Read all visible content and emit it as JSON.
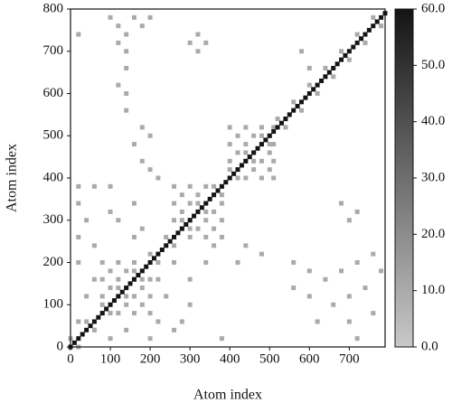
{
  "chart_data": {
    "type": "heatmap",
    "xlabel": "Atom index",
    "ylabel": "Atom index",
    "xlim": [
      0,
      790
    ],
    "ylim": [
      0,
      800
    ],
    "xticks": [
      0,
      100,
      200,
      300,
      400,
      500,
      600,
      700
    ],
    "yticks": [
      0,
      100,
      200,
      300,
      400,
      500,
      600,
      700,
      800
    ],
    "clim": [
      0,
      60
    ],
    "cticks": [
      {
        "value": 0,
        "label": "0.0"
      },
      {
        "value": 10,
        "label": "10.0"
      },
      {
        "value": 20,
        "label": "20.0"
      },
      {
        "value": 30,
        "label": "30.0"
      },
      {
        "value": 40,
        "label": "40.0"
      },
      {
        "value": 50,
        "label": "50.0"
      },
      {
        "value": 60,
        "label": "60.0"
      }
    ],
    "cells": [
      [
        80,
        80,
        10
      ],
      [
        80,
        120,
        10
      ],
      [
        80,
        160,
        10
      ],
      [
        80,
        200,
        10
      ],
      [
        100,
        100,
        10
      ],
      [
        100,
        140,
        10
      ],
      [
        100,
        180,
        10
      ],
      [
        120,
        80,
        10
      ],
      [
        120,
        120,
        10
      ],
      [
        120,
        160,
        10
      ],
      [
        120,
        200,
        10
      ],
      [
        140,
        100,
        10
      ],
      [
        140,
        140,
        10
      ],
      [
        140,
        180,
        10
      ],
      [
        160,
        80,
        10
      ],
      [
        160,
        120,
        10
      ],
      [
        160,
        160,
        10
      ],
      [
        160,
        200,
        10
      ],
      [
        180,
        100,
        10
      ],
      [
        180,
        140,
        10
      ],
      [
        180,
        180,
        10
      ],
      [
        200,
        80,
        10
      ],
      [
        200,
        120,
        10
      ],
      [
        200,
        160,
        10
      ],
      [
        200,
        200,
        10
      ],
      [
        260,
        260,
        10
      ],
      [
        260,
        300,
        10
      ],
      [
        260,
        340,
        10
      ],
      [
        260,
        380,
        10
      ],
      [
        280,
        280,
        10
      ],
      [
        280,
        320,
        10
      ],
      [
        280,
        360,
        10
      ],
      [
        300,
        260,
        10
      ],
      [
        300,
        300,
        10
      ],
      [
        300,
        340,
        10
      ],
      [
        300,
        380,
        10
      ],
      [
        320,
        280,
        10
      ],
      [
        320,
        320,
        10
      ],
      [
        320,
        360,
        10
      ],
      [
        340,
        260,
        10
      ],
      [
        340,
        300,
        10
      ],
      [
        340,
        340,
        10
      ],
      [
        340,
        380,
        10
      ],
      [
        360,
        280,
        10
      ],
      [
        360,
        320,
        10
      ],
      [
        360,
        360,
        10
      ],
      [
        380,
        260,
        10
      ],
      [
        380,
        300,
        10
      ],
      [
        380,
        340,
        10
      ],
      [
        380,
        380,
        10
      ],
      [
        400,
        400,
        10
      ],
      [
        400,
        440,
        10
      ],
      [
        400,
        480,
        10
      ],
      [
        400,
        520,
        10
      ],
      [
        420,
        420,
        10
      ],
      [
        420,
        460,
        10
      ],
      [
        420,
        500,
        10
      ],
      [
        440,
        400,
        10
      ],
      [
        440,
        440,
        10
      ],
      [
        440,
        480,
        10
      ],
      [
        440,
        520,
        10
      ],
      [
        460,
        420,
        10
      ],
      [
        460,
        460,
        10
      ],
      [
        460,
        500,
        10
      ],
      [
        480,
        400,
        10
      ],
      [
        480,
        440,
        10
      ],
      [
        480,
        480,
        10
      ],
      [
        480,
        520,
        10
      ],
      [
        500,
        420,
        10
      ],
      [
        500,
        460,
        10
      ],
      [
        500,
        500,
        10
      ],
      [
        510,
        400,
        10
      ],
      [
        510,
        440,
        10
      ],
      [
        510,
        480,
        10
      ],
      [
        510,
        520,
        10
      ],
      [
        0,
        20,
        10
      ],
      [
        40,
        60,
        10
      ],
      [
        80,
        100,
        10
      ],
      [
        120,
        140,
        10
      ],
      [
        160,
        180,
        10
      ],
      [
        200,
        220,
        10
      ],
      [
        240,
        260,
        10
      ],
      [
        280,
        300,
        10
      ],
      [
        320,
        340,
        10
      ],
      [
        360,
        380,
        10
      ],
      [
        400,
        420,
        10
      ],
      [
        440,
        460,
        10
      ],
      [
        480,
        500,
        10
      ],
      [
        520,
        540,
        10
      ],
      [
        560,
        580,
        10
      ],
      [
        600,
        620,
        10
      ],
      [
        640,
        660,
        10
      ],
      [
        680,
        700,
        10
      ],
      [
        720,
        740,
        10
      ],
      [
        760,
        780,
        10
      ],
      [
        20,
        0,
        10
      ],
      [
        60,
        40,
        10
      ],
      [
        100,
        80,
        10
      ],
      [
        140,
        120,
        10
      ],
      [
        180,
        160,
        10
      ],
      [
        220,
        200,
        10
      ],
      [
        260,
        240,
        10
      ],
      [
        300,
        280,
        10
      ],
      [
        340,
        320,
        10
      ],
      [
        380,
        360,
        10
      ],
      [
        420,
        400,
        10
      ],
      [
        460,
        440,
        10
      ],
      [
        500,
        480,
        10
      ],
      [
        540,
        520,
        10
      ],
      [
        580,
        560,
        10
      ],
      [
        620,
        600,
        10
      ],
      [
        660,
        640,
        10
      ],
      [
        700,
        680,
        10
      ],
      [
        740,
        720,
        10
      ],
      [
        780,
        760,
        10
      ],
      [
        100,
        780,
        10
      ],
      [
        120,
        760,
        10
      ],
      [
        140,
        740,
        10
      ],
      [
        120,
        720,
        10
      ],
      [
        160,
        780,
        10
      ],
      [
        200,
        780,
        10
      ],
      [
        180,
        760,
        10
      ],
      [
        140,
        700,
        10
      ],
      [
        20,
        740,
        10
      ],
      [
        300,
        720,
        10
      ],
      [
        320,
        740,
        10
      ],
      [
        340,
        720,
        10
      ],
      [
        320,
        700,
        10
      ],
      [
        120,
        620,
        10
      ],
      [
        140,
        600,
        10
      ],
      [
        140,
        560,
        10
      ],
      [
        180,
        520,
        10
      ],
      [
        160,
        480,
        10
      ],
      [
        140,
        660,
        10
      ],
      [
        200,
        500,
        10
      ],
      [
        220,
        400,
        10
      ],
      [
        200,
        420,
        10
      ],
      [
        180,
        440,
        10
      ],
      [
        20,
        380,
        10
      ],
      [
        60,
        380,
        10
      ],
      [
        100,
        380,
        10
      ],
      [
        20,
        340,
        10
      ],
      [
        40,
        300,
        10
      ],
      [
        100,
        320,
        10
      ],
      [
        160,
        340,
        10
      ],
      [
        120,
        300,
        10
      ],
      [
        20,
        260,
        10
      ],
      [
        60,
        240,
        10
      ],
      [
        160,
        260,
        10
      ],
      [
        180,
        280,
        10
      ],
      [
        20,
        200,
        10
      ],
      [
        60,
        160,
        10
      ],
      [
        40,
        120,
        10
      ],
      [
        20,
        60,
        10
      ],
      [
        60,
        40,
        10
      ],
      [
        100,
        20,
        10
      ],
      [
        140,
        40,
        10
      ],
      [
        220,
        60,
        10
      ],
      [
        260,
        40,
        10
      ],
      [
        200,
        20,
        10
      ],
      [
        240,
        120,
        10
      ],
      [
        300,
        160,
        10
      ],
      [
        340,
        200,
        10
      ],
      [
        360,
        240,
        10
      ],
      [
        300,
        100,
        10
      ],
      [
        280,
        60,
        10
      ],
      [
        380,
        20,
        10
      ],
      [
        220,
        160,
        10
      ],
      [
        260,
        200,
        10
      ],
      [
        560,
        200,
        10
      ],
      [
        600,
        180,
        10
      ],
      [
        640,
        160,
        10
      ],
      [
        680,
        180,
        10
      ],
      [
        720,
        200,
        10
      ],
      [
        760,
        220,
        10
      ],
      [
        740,
        140,
        10
      ],
      [
        700,
        120,
        10
      ],
      [
        660,
        100,
        10
      ],
      [
        600,
        120,
        10
      ],
      [
        560,
        140,
        10
      ],
      [
        620,
        60,
        10
      ],
      [
        700,
        60,
        10
      ],
      [
        760,
        80,
        10
      ],
      [
        780,
        180,
        10
      ],
      [
        720,
        20,
        10
      ],
      [
        680,
        340,
        10
      ],
      [
        700,
        300,
        10
      ],
      [
        720,
        320,
        10
      ],
      [
        480,
        220,
        10
      ],
      [
        440,
        240,
        10
      ],
      [
        420,
        200,
        10
      ],
      [
        580,
        700,
        10
      ],
      [
        600,
        660,
        10
      ],
      [
        0,
        0,
        60
      ],
      [
        10,
        10,
        60
      ],
      [
        20,
        20,
        60
      ],
      [
        30,
        30,
        60
      ],
      [
        40,
        40,
        60
      ],
      [
        50,
        50,
        60
      ],
      [
        60,
        60,
        60
      ],
      [
        70,
        70,
        60
      ],
      [
        80,
        80,
        60
      ],
      [
        90,
        90,
        60
      ],
      [
        100,
        100,
        60
      ],
      [
        110,
        110,
        60
      ],
      [
        120,
        120,
        60
      ],
      [
        130,
        130,
        60
      ],
      [
        140,
        140,
        60
      ],
      [
        150,
        150,
        60
      ],
      [
        160,
        160,
        60
      ],
      [
        170,
        170,
        60
      ],
      [
        180,
        180,
        60
      ],
      [
        190,
        190,
        60
      ],
      [
        200,
        200,
        60
      ],
      [
        210,
        210,
        60
      ],
      [
        220,
        220,
        60
      ],
      [
        230,
        230,
        60
      ],
      [
        240,
        240,
        60
      ],
      [
        250,
        250,
        60
      ],
      [
        260,
        260,
        60
      ],
      [
        270,
        270,
        60
      ],
      [
        280,
        280,
        60
      ],
      [
        290,
        290,
        60
      ],
      [
        300,
        300,
        60
      ],
      [
        310,
        310,
        60
      ],
      [
        320,
        320,
        60
      ],
      [
        330,
        330,
        60
      ],
      [
        340,
        340,
        60
      ],
      [
        350,
        350,
        60
      ],
      [
        360,
        360,
        60
      ],
      [
        370,
        370,
        60
      ],
      [
        380,
        380,
        60
      ],
      [
        390,
        390,
        60
      ],
      [
        400,
        400,
        60
      ],
      [
        410,
        410,
        60
      ],
      [
        420,
        420,
        60
      ],
      [
        430,
        430,
        60
      ],
      [
        440,
        440,
        60
      ],
      [
        450,
        450,
        60
      ],
      [
        460,
        460,
        60
      ],
      [
        470,
        470,
        60
      ],
      [
        480,
        480,
        60
      ],
      [
        490,
        490,
        60
      ],
      [
        500,
        500,
        60
      ],
      [
        510,
        510,
        60
      ],
      [
        520,
        520,
        60
      ],
      [
        530,
        530,
        60
      ],
      [
        540,
        540,
        60
      ],
      [
        550,
        550,
        60
      ],
      [
        560,
        560,
        60
      ],
      [
        570,
        570,
        60
      ],
      [
        580,
        580,
        60
      ],
      [
        590,
        590,
        60
      ],
      [
        600,
        600,
        60
      ],
      [
        610,
        610,
        60
      ],
      [
        620,
        620,
        60
      ],
      [
        630,
        630,
        60
      ],
      [
        640,
        640,
        60
      ],
      [
        650,
        650,
        60
      ],
      [
        660,
        660,
        60
      ],
      [
        670,
        670,
        60
      ],
      [
        680,
        680,
        60
      ],
      [
        690,
        690,
        60
      ],
      [
        700,
        700,
        60
      ],
      [
        710,
        710,
        60
      ],
      [
        720,
        720,
        60
      ],
      [
        730,
        730,
        60
      ],
      [
        740,
        740,
        60
      ],
      [
        750,
        750,
        60
      ],
      [
        760,
        760,
        60
      ],
      [
        770,
        770,
        60
      ],
      [
        780,
        780,
        60
      ],
      [
        790,
        790,
        60
      ]
    ]
  }
}
